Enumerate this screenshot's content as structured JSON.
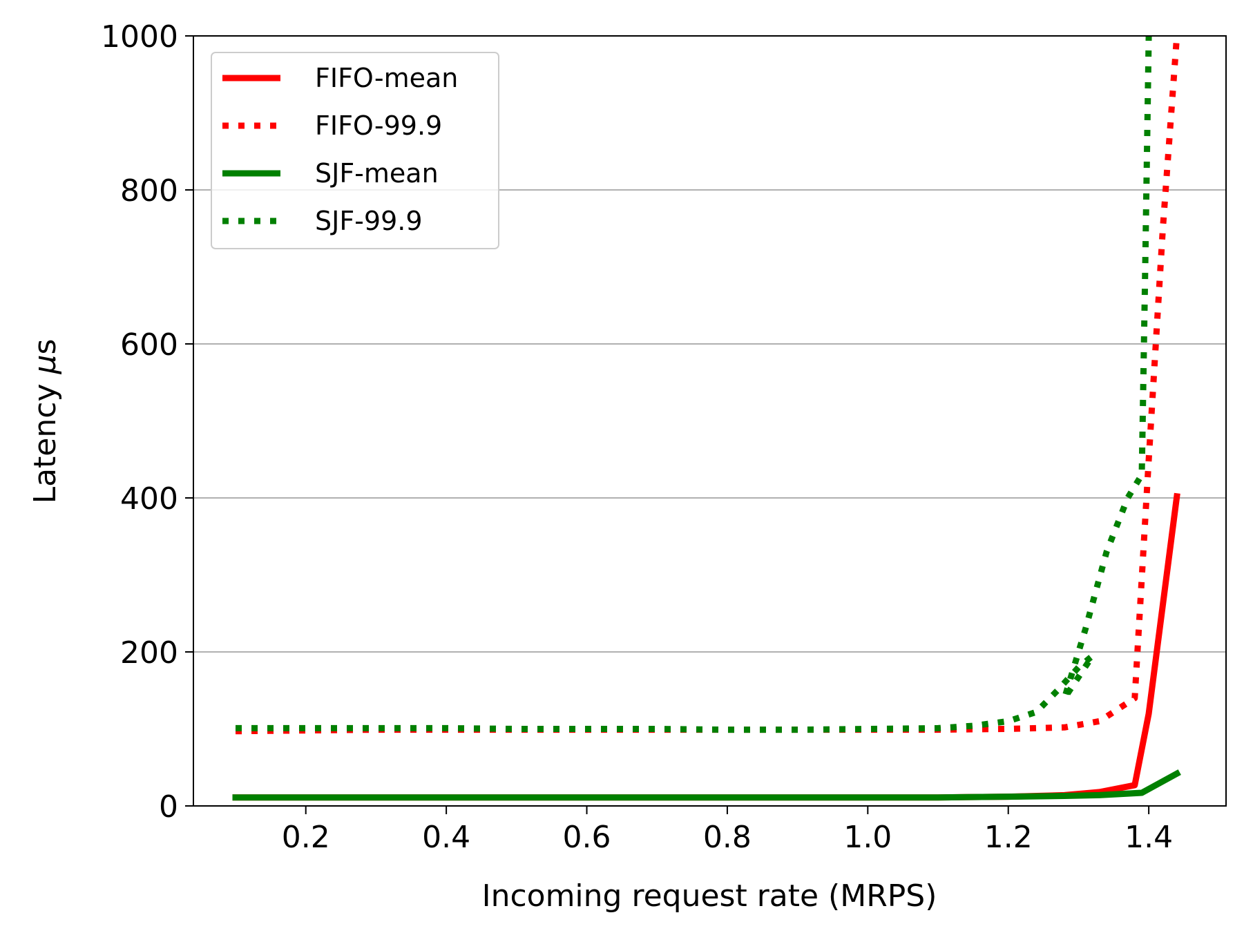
{
  "chart_data": {
    "type": "line",
    "title": "",
    "xlabel": "Incoming request rate (MRPS)",
    "ylabel_prefix": "Latency ",
    "ylabel_mu": "μ",
    "ylabel_suffix": "s",
    "xlim": [
      0.04,
      1.51
    ],
    "ylim": [
      0,
      1000
    ],
    "xticks": [
      0.2,
      0.4,
      0.6,
      0.8,
      1.0,
      1.2,
      1.4
    ],
    "xtick_labels": [
      "0.2",
      "0.4",
      "0.6",
      "0.8",
      "1.0",
      "1.2",
      "1.4"
    ],
    "yticks": [
      0,
      200,
      400,
      600,
      800,
      1000
    ],
    "ytick_labels": [
      "0",
      "200",
      "400",
      "600",
      "800",
      "1000"
    ],
    "grid": "horizontal",
    "legend_position": "top-left",
    "series": [
      {
        "name": "FIFO-mean",
        "color": "#ff0000",
        "style": "solid",
        "x": [
          0.1,
          0.2,
          0.3,
          0.4,
          0.5,
          0.6,
          0.7,
          0.8,
          0.9,
          1.0,
          1.1,
          1.2,
          1.28,
          1.33,
          1.38,
          1.4,
          1.44
        ],
        "y": [
          11,
          11,
          11,
          11,
          11,
          11,
          11,
          11,
          11,
          11,
          11,
          12,
          14,
          18,
          27,
          120,
          402
        ]
      },
      {
        "name": "FIFO-99.9",
        "color": "#ff0000",
        "style": "dotted",
        "x": [
          0.1,
          0.2,
          0.3,
          0.4,
          0.5,
          0.6,
          0.7,
          0.8,
          0.9,
          1.0,
          1.1,
          1.2,
          1.28,
          1.33,
          1.38,
          1.4,
          1.42,
          1.44
        ],
        "y": [
          97,
          98,
          99,
          99,
          99,
          99,
          99,
          99,
          99,
          99,
          99,
          100,
          102,
          110,
          140,
          450,
          750,
          1000
        ]
      },
      {
        "name": "SJF-mean",
        "color": "#008000",
        "style": "solid",
        "x": [
          0.1,
          0.2,
          0.3,
          0.4,
          0.5,
          0.6,
          0.7,
          0.8,
          0.9,
          1.0,
          1.1,
          1.2,
          1.28,
          1.33,
          1.39,
          1.44
        ],
        "y": [
          11,
          11,
          11,
          11,
          11,
          11,
          11,
          11,
          11,
          11,
          11,
          12,
          13,
          14,
          17,
          42
        ]
      },
      {
        "name": "SJF-99.9",
        "color": "#008000",
        "style": "dotted",
        "x": [
          0.1,
          0.2,
          0.3,
          0.4,
          0.5,
          0.6,
          0.7,
          0.8,
          0.9,
          1.0,
          1.1,
          1.15,
          1.2,
          1.24,
          1.27,
          1.3,
          1.32,
          1.28,
          1.31,
          1.34,
          1.37,
          1.39,
          1.395,
          1.4
        ],
        "y": [
          101,
          101,
          101,
          101,
          100,
          100,
          100,
          99,
          99,
          100,
          101,
          104,
          110,
          122,
          150,
          180,
          195,
          140,
          230,
          330,
          400,
          430,
          700,
          1000
        ]
      }
    ]
  }
}
